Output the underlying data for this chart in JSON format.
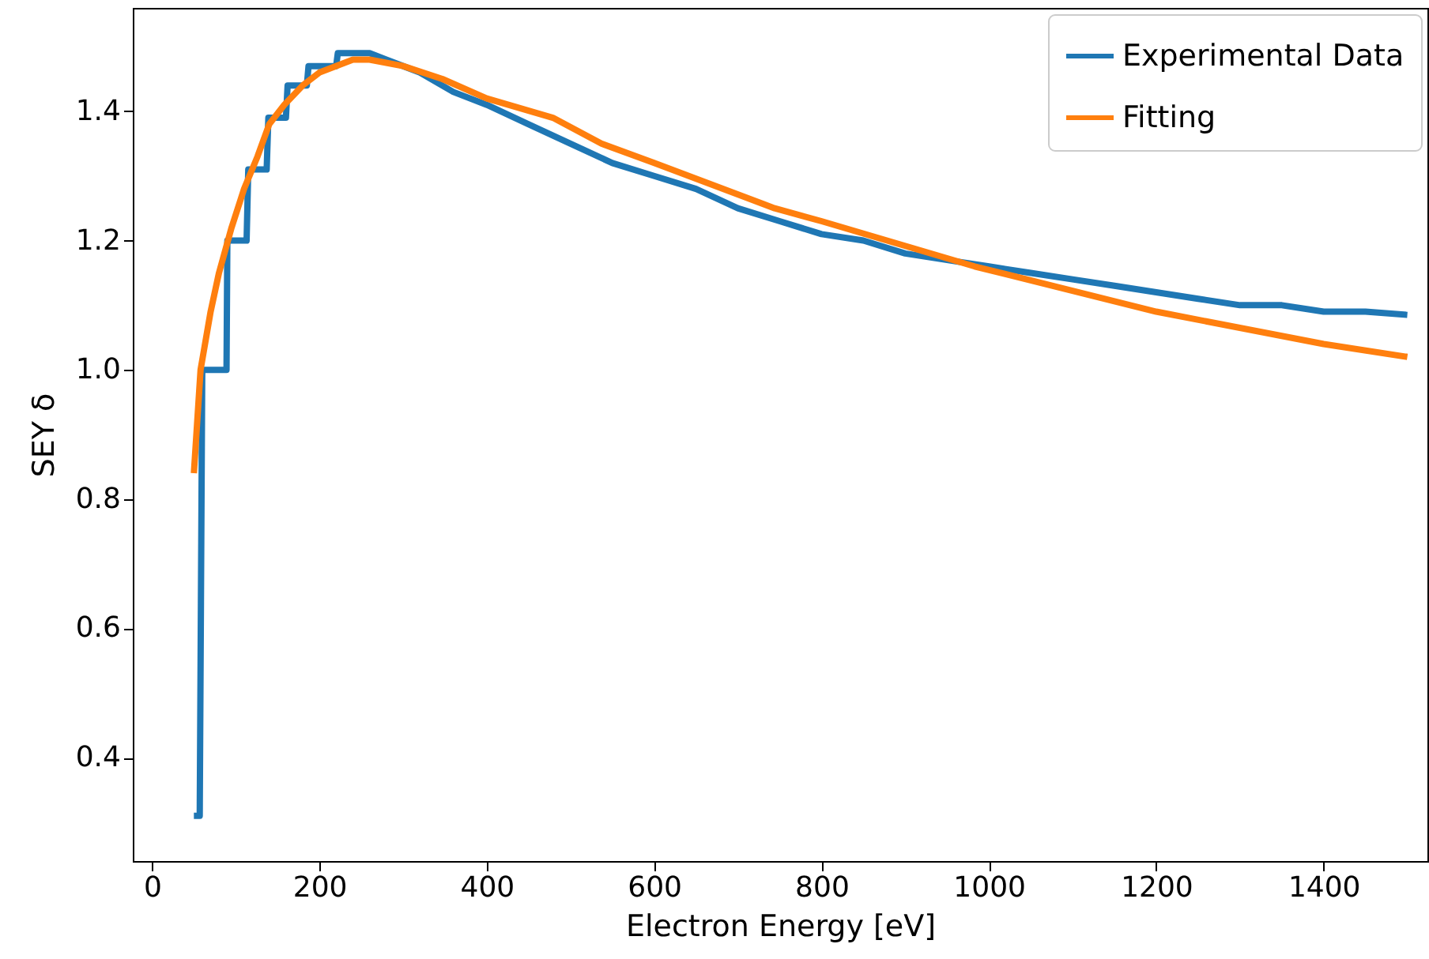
{
  "chart_data": {
    "type": "line",
    "xlabel": "Electron Energy [eV]",
    "ylabel": "SEY δ",
    "xlim": [
      -23,
      1524
    ],
    "xticks": [
      0,
      200,
      400,
      600,
      800,
      1000,
      1200,
      1400
    ],
    "ylim": [
      0.24,
      1.56
    ],
    "yticks": [
      0.4,
      0.6,
      0.8,
      {
        "value": 1.0,
        "label": "1.0"
      },
      1.2,
      1.4
    ],
    "legend": "top right",
    "grid": false,
    "series": [
      {
        "name": "Experimental Data",
        "color": "#1f77b4",
        "x": [
          50,
          57,
          60,
          89,
          90,
          113,
          115,
          137,
          139,
          160,
          162,
          185,
          187,
          220,
          222,
          260,
          280,
          320,
          360,
          400,
          450,
          500,
          550,
          600,
          650,
          700,
          750,
          800,
          850,
          900,
          950,
          1000,
          1050,
          1100,
          1150,
          1200,
          1250,
          1300,
          1350,
          1400,
          1450,
          1500
        ],
        "values": [
          0.31,
          0.31,
          1.0,
          1.0,
          1.2,
          1.2,
          1.31,
          1.31,
          1.39,
          1.39,
          1.44,
          1.44,
          1.47,
          1.47,
          1.49,
          1.49,
          1.48,
          1.46,
          1.43,
          1.41,
          1.38,
          1.35,
          1.32,
          1.3,
          1.28,
          1.25,
          1.23,
          1.21,
          1.2,
          1.18,
          1.17,
          1.16,
          1.15,
          1.14,
          1.13,
          1.12,
          1.11,
          1.1,
          1.1,
          1.09,
          1.09,
          1.085
        ]
      },
      {
        "name": "Fitting",
        "color": "#ff7f0e",
        "x": [
          50,
          58,
          70,
          80,
          95,
          110,
          126,
          140,
          158,
          180,
          200,
          240,
          260,
          300,
          347,
          400,
          479,
          537,
          600,
          744,
          800,
          983,
          1200,
          1400,
          1500
        ],
        "values": [
          0.84,
          1.0,
          1.09,
          1.15,
          1.22,
          1.28,
          1.33,
          1.38,
          1.41,
          1.44,
          1.46,
          1.48,
          1.48,
          1.47,
          1.45,
          1.42,
          1.39,
          1.35,
          1.32,
          1.25,
          1.23,
          1.16,
          1.09,
          1.04,
          1.02
        ]
      }
    ]
  }
}
